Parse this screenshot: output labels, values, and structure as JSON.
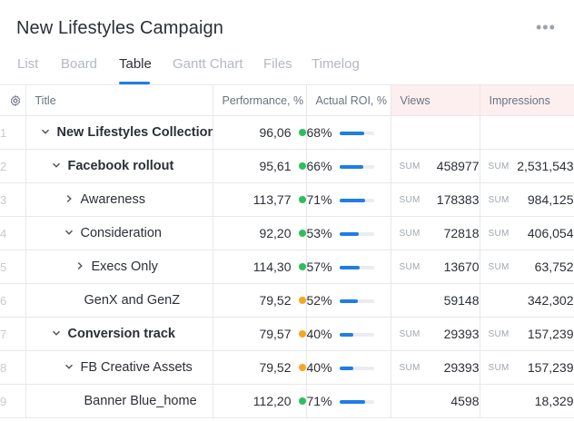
{
  "header": {
    "title": "New Lifestyles Campaign",
    "more_icon": "more-horizontal-icon"
  },
  "tabs": [
    {
      "label": "List",
      "active": false
    },
    {
      "label": "Board",
      "active": false
    },
    {
      "label": "Table",
      "active": true
    },
    {
      "label": "Gantt Chart",
      "active": false
    },
    {
      "label": "Files",
      "active": false
    },
    {
      "label": "Timelog",
      "active": false
    }
  ],
  "columns": {
    "settings_icon": "gear-icon",
    "title": "Title",
    "performance": "Performance, %",
    "roi": "Actual ROI, %",
    "views": "Views",
    "impressions": "Impressions"
  },
  "colors": {
    "accent": "#1f7de6",
    "status_green": "#2dbe60",
    "status_orange": "#f5a623",
    "highlight_header": "#fdeff0"
  },
  "rows": [
    {
      "num": "1",
      "title": "New Lifestyles Collection",
      "bold": true,
      "chevron": "down",
      "level": 0,
      "performance": "96,06",
      "status": "green",
      "roi": "68%",
      "roi_value": 0.68,
      "views_sum": "",
      "views": "",
      "impressions_sum": "",
      "impressions": ""
    },
    {
      "num": "2",
      "title": "Facebook rollout",
      "bold": true,
      "chevron": "down",
      "level": 1,
      "performance": "95,61",
      "status": "green",
      "roi": "66%",
      "roi_value": 0.66,
      "views_sum": "SUM",
      "views": "458977",
      "impressions_sum": "SUM",
      "impressions": "2,531,543"
    },
    {
      "num": "3",
      "title": "Awareness",
      "bold": false,
      "chevron": "right",
      "level": 2,
      "performance": "113,77",
      "status": "green",
      "roi": "71%",
      "roi_value": 0.71,
      "views_sum": "SUM",
      "views": "178383",
      "impressions_sum": "SUM",
      "impressions": "984,125"
    },
    {
      "num": "4",
      "title": "Consideration",
      "bold": false,
      "chevron": "down",
      "level": 2,
      "performance": "92,20",
      "status": "green",
      "roi": "53%",
      "roi_value": 0.53,
      "views_sum": "SUM",
      "views": "72818",
      "impressions_sum": "SUM",
      "impressions": "406,054"
    },
    {
      "num": "5",
      "title": "Execs Only",
      "bold": false,
      "chevron": "right",
      "level": 3,
      "performance": "114,30",
      "status": "green",
      "roi": "57%",
      "roi_value": 0.57,
      "views_sum": "SUM",
      "views": "13670",
      "impressions_sum": "SUM",
      "impressions": "63,752"
    },
    {
      "num": "6",
      "title": "GenX and GenZ",
      "bold": false,
      "chevron": "",
      "level": 4,
      "performance": "79,52",
      "status": "orange",
      "roi": "52%",
      "roi_value": 0.52,
      "views_sum": "",
      "views": "59148",
      "impressions_sum": "",
      "impressions": "342,302"
    },
    {
      "num": "7",
      "title": "Conversion track",
      "bold": true,
      "chevron": "down",
      "level": 1,
      "performance": "79,57",
      "status": "orange",
      "roi": "40%",
      "roi_value": 0.4,
      "views_sum": "SUM",
      "views": "29393",
      "impressions_sum": "SUM",
      "impressions": "157,239"
    },
    {
      "num": "8",
      "title": "FB Creative Assets",
      "bold": false,
      "chevron": "down",
      "level": 2,
      "performance": "79,52",
      "status": "orange",
      "roi": "40%",
      "roi_value": 0.4,
      "views_sum": "SUM",
      "views": "29393",
      "impressions_sum": "SUM",
      "impressions": "157,239"
    },
    {
      "num": "9",
      "title": "Banner Blue_home",
      "bold": false,
      "chevron": "",
      "level": 4,
      "performance": "112,20",
      "status": "green",
      "roi": "71%",
      "roi_value": 0.71,
      "views_sum": "",
      "views": "4598",
      "impressions_sum": "",
      "impressions": "18,329"
    }
  ]
}
